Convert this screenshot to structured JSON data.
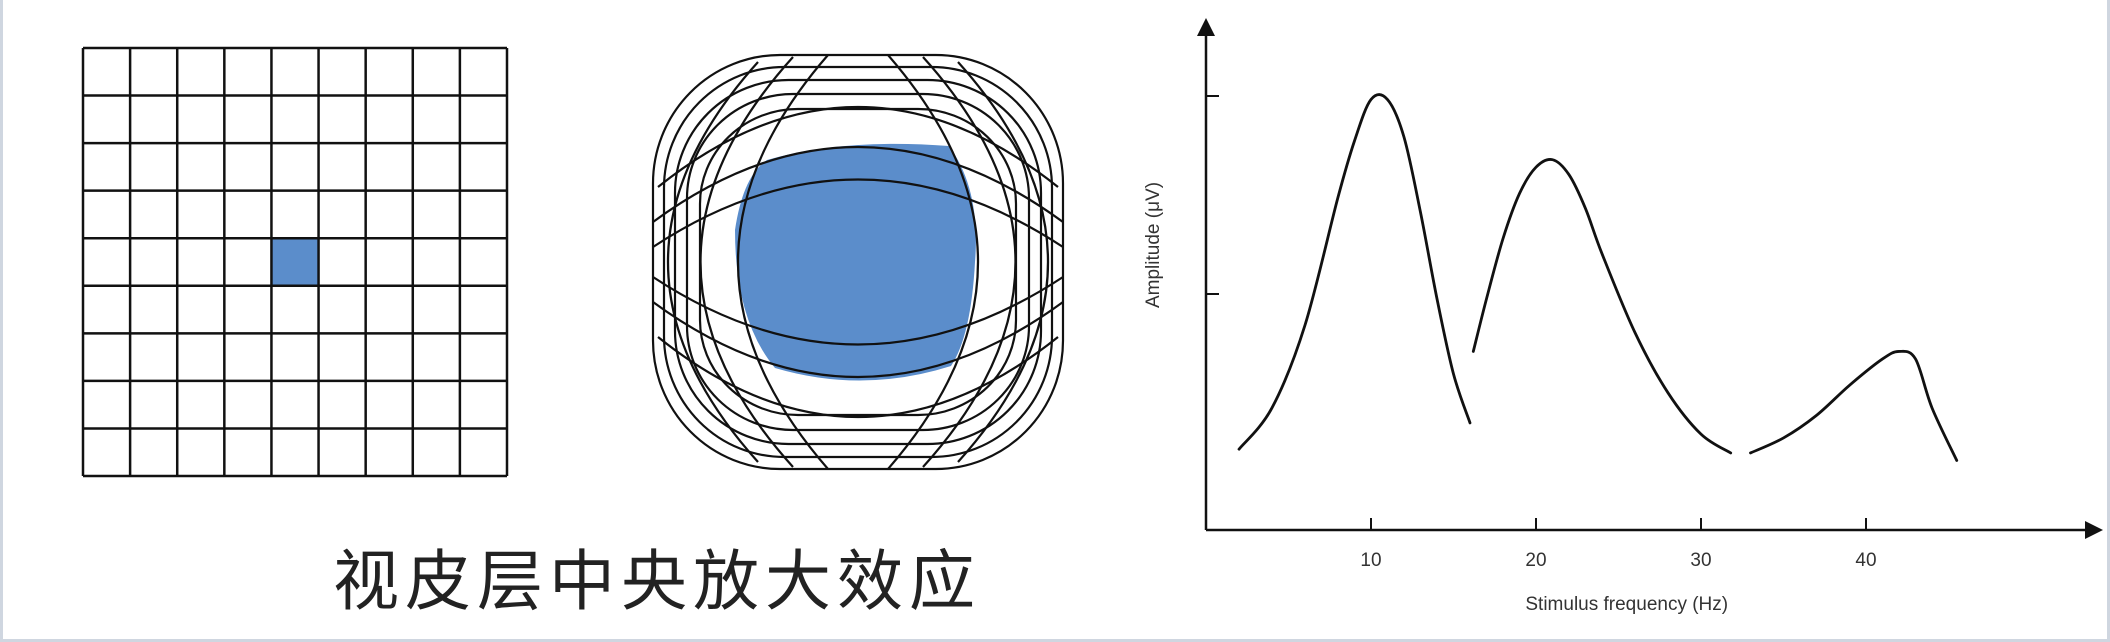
{
  "caption": "视皮层中央放大效应",
  "figures": {
    "retina_grid": {
      "rows": 9,
      "cols": 9,
      "highlight_cell": {
        "row": 4,
        "col": 4
      },
      "highlight_color": "#5b8dcb"
    },
    "cortical_map": {
      "highlight_color": "#5b8dcb"
    }
  },
  "chart_data": {
    "type": "line",
    "xlabel": "Stimulus frequency (Hz)",
    "ylabel": "Amplitude  (μV)",
    "x_ticks": [
      10,
      20,
      30,
      40
    ],
    "xlim": [
      0,
      52
    ],
    "ylim": [
      0,
      1
    ],
    "series": [
      {
        "x": [
          2,
          4,
          6,
          8,
          9,
          10,
          11,
          12,
          13,
          14,
          15,
          16
        ],
        "y": [
          0.05,
          0.16,
          0.38,
          0.72,
          0.87,
          0.98,
          0.98,
          0.88,
          0.68,
          0.45,
          0.25,
          0.12
        ]
      },
      {
        "x": [
          16.2,
          17,
          18,
          19,
          20,
          21,
          22,
          23,
          24,
          26,
          28,
          30,
          31.8
        ],
        "y": [
          0.31,
          0.45,
          0.61,
          0.73,
          0.8,
          0.82,
          0.78,
          0.69,
          0.57,
          0.36,
          0.2,
          0.09,
          0.04
        ]
      },
      {
        "x": [
          33,
          35,
          37,
          39,
          41,
          42,
          43,
          44,
          45.5
        ],
        "y": [
          0.04,
          0.08,
          0.14,
          0.22,
          0.29,
          0.31,
          0.29,
          0.16,
          0.02
        ]
      }
    ],
    "grid": false
  }
}
